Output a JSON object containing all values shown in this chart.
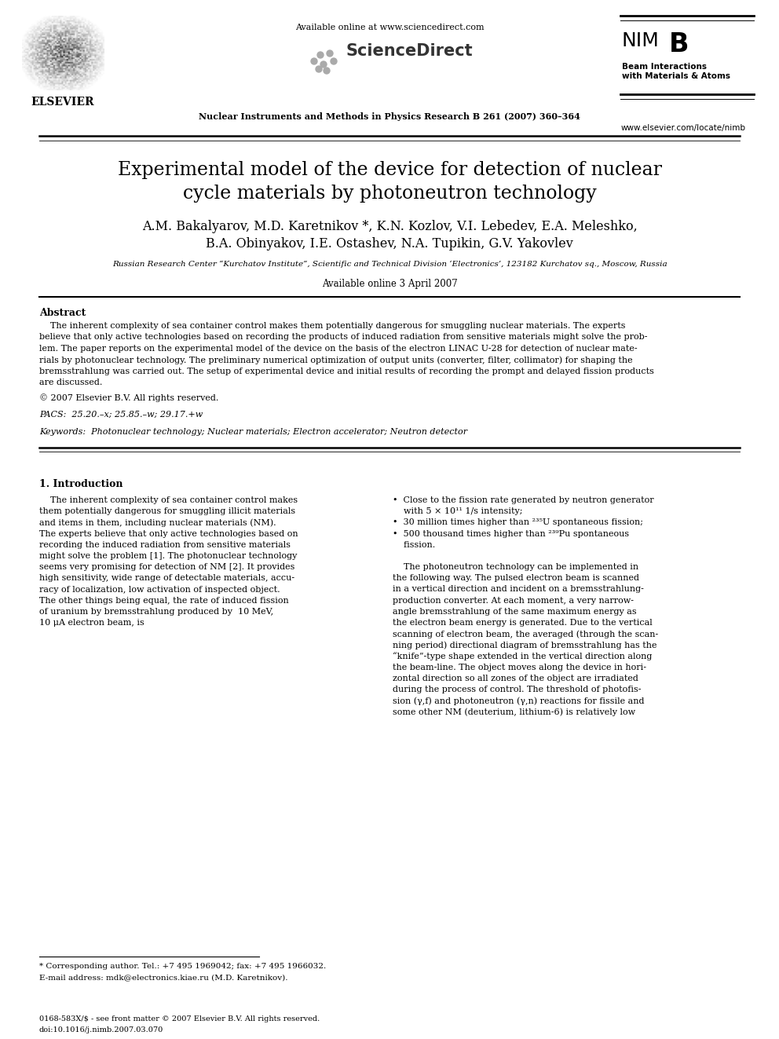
{
  "background_color": "#ffffff",
  "page_width": 9.92,
  "page_height": 13.23,
  "title_line1": "Experimental model of the device for detection of nuclear",
  "title_line2": "cycle materials by photoneutron technology",
  "authors_line1": "A.M. Bakalyarov, M.D. Karetnikov *, K.N. Kozlov, V.I. Lebedev, E.A. Meleshko,",
  "authors_line2": "B.A. Obinyakov, I.E. Ostashev, N.A. Tupikin, G.V. Yakovlev",
  "affiliation": "Russian Research Center “Kurchatov Institute”, Scientific and Technical Division ‘Electronics’, 123182 Kurchatov sq., Moscow, Russia",
  "available_online": "Available online 3 April 2007",
  "header_url": "Available online at www.sciencedirect.com",
  "journal_info": "Nuclear Instruments and Methods in Physics Research B 261 (2007) 360–364",
  "journal_url": "www.elsevier.com/locate/nimb",
  "elsevier_text": "ELSEVIER",
  "nim_subtitle": "Beam Interactions\nwith Materials & Atoms",
  "abstract_title": "Abstract",
  "copyright": "© 2007 Elsevier B.V. All rights reserved.",
  "pacs": "PACS:  25.20.–x; 25.85.–w; 29.17.+w",
  "keywords": "Keywords:  Photonuclear technology; Nuclear materials; Electron accelerator; Neutron detector",
  "section1_title": "1. Introduction",
  "footnote_corresponding": "* Corresponding author. Tel.: +7 495 1969042; fax: +7 495 1966032.",
  "footnote_email": "E-mail address: mdk@electronics.kiae.ru (M.D. Karetnikov).",
  "footer_left": "0168-583X/$ - see front matter © 2007 Elsevier B.V. All rights reserved.",
  "footer_doi": "doi:10.1016/j.nimb.2007.03.070",
  "abstract_lines": [
    "    The inherent complexity of sea container control makes them potentially dangerous for smuggling nuclear materials. The experts",
    "believe that only active technologies based on recording the products of induced radiation from sensitive materials might solve the prob-",
    "lem. The paper reports on the experimental model of the device on the basis of the electron LINAC U-28 for detection of nuclear mate-",
    "rials by photonuclear technology. The preliminary numerical optimization of output units (converter, filter, collimator) for shaping the",
    "bremsstrahlung was carried out. The setup of experimental device and initial results of recording the prompt and delayed fission products",
    "are discussed."
  ],
  "col1_lines": [
    "    The inherent complexity of sea container control makes",
    "them potentially dangerous for smuggling illicit materials",
    "and items in them, including nuclear materials (NM).",
    "The experts believe that only active technologies based on",
    "recording the induced radiation from sensitive materials",
    "might solve the problem [1]. The photonuclear technology",
    "seems very promising for detection of NM [2]. It provides",
    "high sensitivity, wide range of detectable materials, accu-",
    "racy of localization, low activation of inspected object.",
    "The other things being equal, the rate of induced fission",
    "of uranium by bremsstrahlung produced by  10 MeV,",
    "10 μA electron beam, is"
  ],
  "col2_bullet_lines": [
    "•  Close to the fission rate generated by neutron generator",
    "    with 5 × 10¹¹ 1/s intensity;",
    "•  30 million times higher than ²³⁵U spontaneous fission;",
    "•  500 thousand times higher than ²³⁹Pu spontaneous",
    "    fission."
  ],
  "col2_para_lines": [
    "    The photoneutron technology can be implemented in",
    "the following way. The pulsed electron beam is scanned",
    "in a vertical direction and incident on a bremsstrahlung-",
    "production converter. At each moment, a very narrow-",
    "angle bremsstrahlung of the same maximum energy as",
    "the electron beam energy is generated. Due to the vertical",
    "scanning of electron beam, the averaged (through the scan-",
    "ning period) directional diagram of bremsstrahlung has the",
    "“knife”-type shape extended in the vertical direction along",
    "the beam-line. The object moves along the device in hori-",
    "zontal direction so all zones of the object are irradiated",
    "during the process of control. The threshold of photofis-",
    "sion (γ,f) and photoneutron (γ,n) reactions for fissile and",
    "some other NM (deuterium, lithium-6) is relatively low"
  ]
}
